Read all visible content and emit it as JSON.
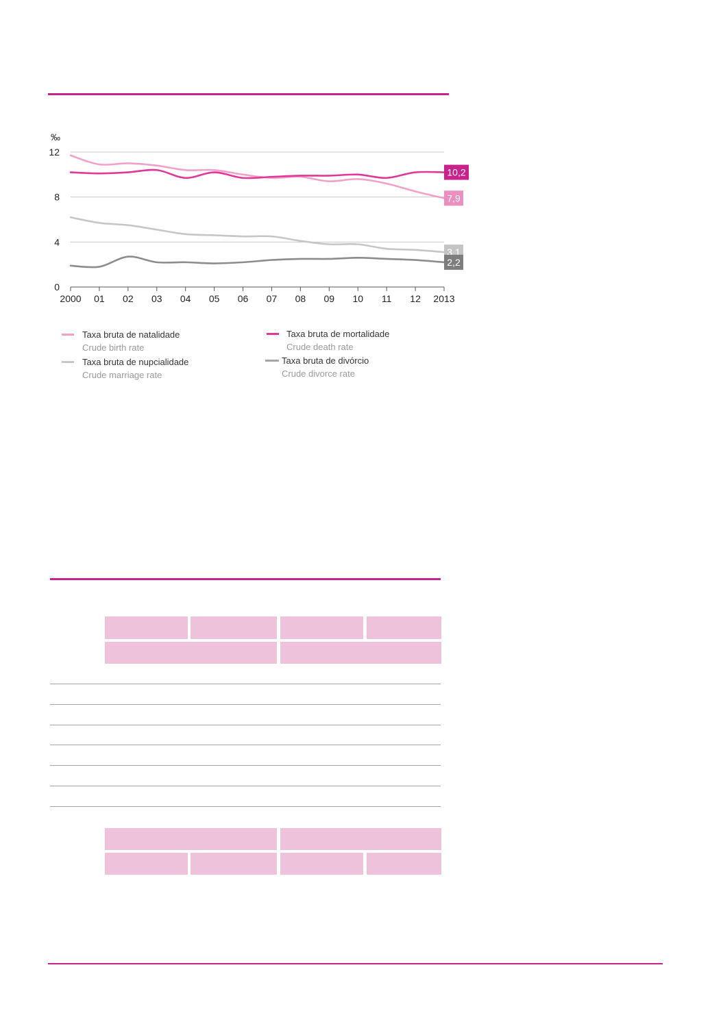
{
  "chart_data": {
    "type": "line",
    "unit_label": "‰",
    "x": [
      "2000",
      "01",
      "02",
      "03",
      "04",
      "05",
      "06",
      "07",
      "08",
      "09",
      "10",
      "11",
      "12",
      "2013"
    ],
    "yticks": [
      0,
      4,
      8,
      12
    ],
    "ylim": [
      0,
      12
    ],
    "grid": true,
    "series": [
      {
        "name_pt": "Taxa bruta de natalidade",
        "name_en": "Crude birth rate",
        "color": "#f2a0c8",
        "values": [
          11.7,
          10.9,
          11.0,
          10.8,
          10.4,
          10.4,
          10.0,
          9.7,
          9.8,
          9.4,
          9.6,
          9.2,
          8.5,
          7.9
        ],
        "end_label": "7,9",
        "label_bg": "#ea8fc0"
      },
      {
        "name_pt": "Taxa bruta de mortalidade",
        "name_en": "Crude death rate",
        "color": "#e0379a",
        "values": [
          10.2,
          10.1,
          10.2,
          10.4,
          9.7,
          10.2,
          9.7,
          9.8,
          9.9,
          9.9,
          10.0,
          9.7,
          10.2,
          10.2
        ],
        "end_label": "10,2",
        "label_bg": "#c8228c"
      },
      {
        "name_pt": "Taxa bruta de nupcialidade",
        "name_en": "Crude marriage rate",
        "color": "#c6c6c6",
        "values": [
          6.2,
          5.7,
          5.5,
          5.1,
          4.7,
          4.6,
          4.5,
          4.5,
          4.1,
          3.8,
          3.8,
          3.4,
          3.3,
          3.1
        ],
        "end_label": "3,1",
        "label_bg": "#c4c4c4"
      },
      {
        "name_pt": "Taxa bruta de divórcio",
        "name_en": "Crude divorce rate",
        "color": "#8c8c8c",
        "values": [
          1.9,
          1.8,
          2.7,
          2.2,
          2.2,
          2.1,
          2.2,
          2.4,
          2.5,
          2.5,
          2.6,
          2.5,
          2.4,
          2.2
        ],
        "end_label": "2,2",
        "label_bg": "#7d7d7d"
      }
    ]
  },
  "legend": {
    "birth": {
      "pt": "Taxa bruta de natalidade",
      "en": "Crude birth rate"
    },
    "death": {
      "pt": "Taxa bruta de mortalidade",
      "en": "Crude death rate"
    },
    "marriage": {
      "pt": "Taxa bruta de nupcialidade",
      "en": "Crude marriage rate"
    },
    "divorce": {
      "pt": "Taxa bruta de divórcio",
      "en": "Crude divorce rate"
    }
  },
  "colors": {
    "accent": "#c8228c",
    "table_header": "#efc2db",
    "rule": "#a6a6a6"
  }
}
